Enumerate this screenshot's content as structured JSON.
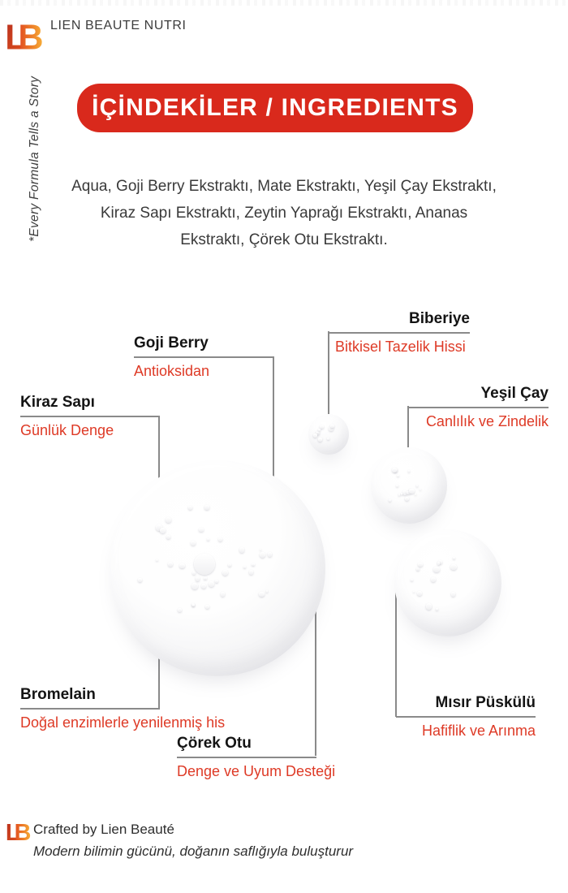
{
  "colors": {
    "banner_red": "#D9291C",
    "benefit_red": "#DE3A26",
    "line_gray": "#8A8A8A",
    "text_dark": "#3A3A3A"
  },
  "logo": {
    "l": "L",
    "b": "B"
  },
  "header": {
    "brand": "LIEN BEAUTE NUTRI",
    "vertical_tagline": "*Every Formula Tells a Story"
  },
  "banner": {
    "title": "İÇİNDEKİLER / INGREDIENTS"
  },
  "ingredients": {
    "lines": [
      "Aqua, Goji Berry Ekstraktı, Mate Ekstraktı, Yeşil Çay Ekstraktı,",
      "Kiraz Sapı Ekstraktı, Zeytin Yaprağı Ekstraktı, Ananas",
      "Ekstraktı, Çörek Otu Ekstraktı."
    ]
  },
  "callouts": {
    "goji": {
      "name": "Goji Berry",
      "benefit": "Antioksidan"
    },
    "biberiye": {
      "name": "Biberiye",
      "benefit": "Bitkisel Tazelik Hissi"
    },
    "kiraz": {
      "name": "Kiraz Sapı",
      "benefit": "Günlük Denge"
    },
    "yesilcay": {
      "name": "Yeşil Çay",
      "benefit": "Canlılık ve Zindelik"
    },
    "bromelain": {
      "name": "Bromelain",
      "benefit": "Doğal enzimlerle yenilenmiş his"
    },
    "misir": {
      "name": "Mısır Püskülü",
      "benefit": "Hafiflik ve Arınma"
    },
    "corekotu": {
      "name": "Çörek Otu",
      "benefit": "Denge ve Uyum Desteği"
    }
  },
  "footer": {
    "crafted_by": "Crafted by Lien Beauté",
    "tagline": "Modern bilimin gücünü, doğanın saflığıyla buluşturur"
  }
}
